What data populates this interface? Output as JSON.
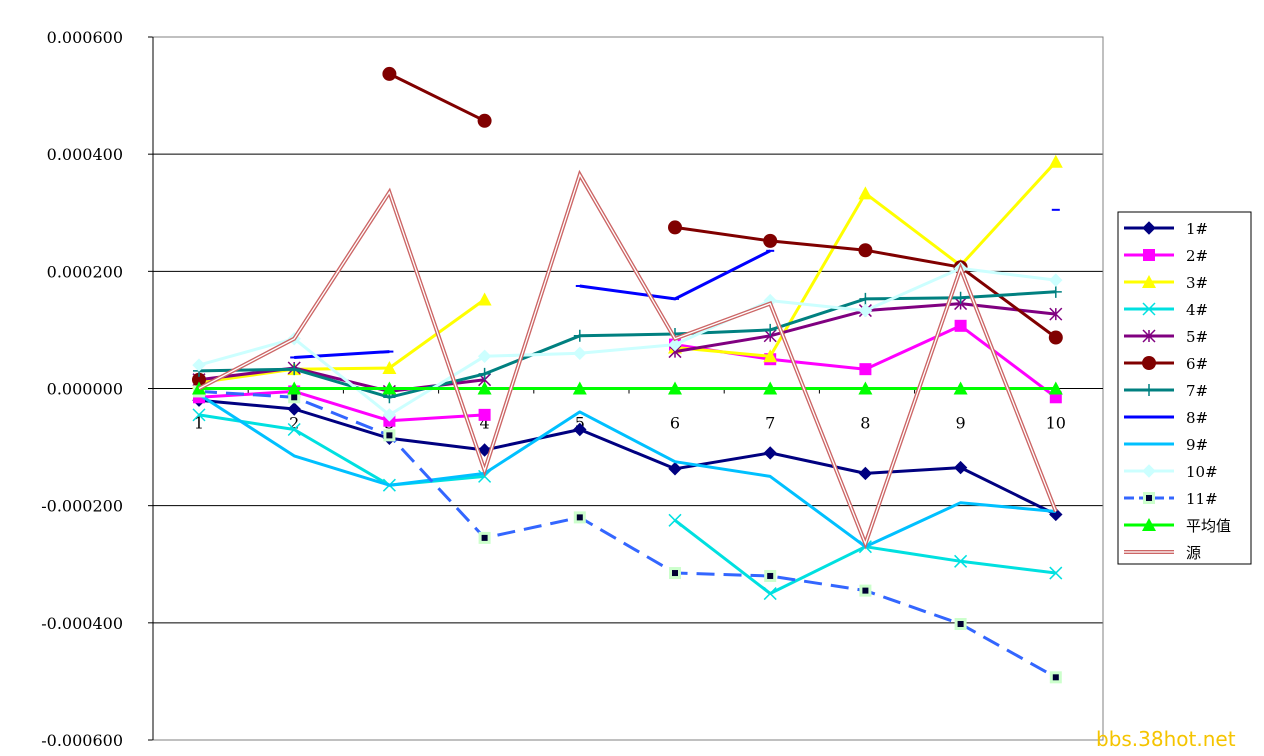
{
  "chart_data": {
    "type": "line",
    "title": "",
    "xlabel": "",
    "ylabel": "",
    "categories": [
      "1",
      "2",
      "3",
      "4",
      "5",
      "6",
      "7",
      "8",
      "9",
      "10"
    ],
    "ylim": [
      -0.0006,
      0.0006
    ],
    "yticks": [
      0.0006,
      0.0004,
      0.0002,
      0.0,
      -0.0002,
      -0.0004,
      -0.0006
    ],
    "ytick_labels": [
      "0.000600",
      "0.000400",
      "0.000200",
      "0.000000",
      "-0.000200",
      "-0.000400",
      "-0.000600"
    ],
    "grid": true,
    "legend_position": "right",
    "series": [
      {
        "name": "1#",
        "color": "#000080",
        "marker": "diamond",
        "dashed": false,
        "values": [
          -2e-05,
          -3.5e-05,
          -8.5e-05,
          -0.000105,
          -7e-05,
          -0.000137,
          -0.00011,
          -0.000145,
          -0.000135,
          -0.000215
        ]
      },
      {
        "name": "2#",
        "color": "#ff00ff",
        "marker": "square",
        "dashed": false,
        "values": [
          -1.5e-05,
          -5e-06,
          -5.5e-05,
          -4.5e-05,
          null,
          7.5e-05,
          5e-05,
          3.3e-05,
          0.000107,
          -1.5e-05
        ]
      },
      {
        "name": "3#",
        "color": "#ffff00",
        "marker": "triangle",
        "dashed": false,
        "values": [
          1e-05,
          3.3e-05,
          3.5e-05,
          0.000152,
          null,
          7e-05,
          5.5e-05,
          0.000333,
          0.00021,
          0.000387
        ]
      },
      {
        "name": "4#",
        "color": "#00e0e0",
        "marker": "x",
        "dashed": false,
        "values": [
          -4.5e-05,
          -7e-05,
          -0.000165,
          -0.00015,
          null,
          -0.000225,
          -0.00035,
          -0.00027,
          -0.000295,
          -0.000315
        ]
      },
      {
        "name": "5#",
        "color": "#800080",
        "marker": "star",
        "dashed": false,
        "values": [
          1.5e-05,
          3.5e-05,
          -5e-06,
          1.5e-05,
          null,
          6.3e-05,
          9e-05,
          0.000133,
          0.000145,
          0.000127
        ]
      },
      {
        "name": "6#",
        "color": "#800000",
        "marker": "circle",
        "dashed": false,
        "values": [
          1.5e-05,
          null,
          0.000537,
          0.000457,
          null,
          0.000275,
          0.000252,
          0.000236,
          0.000207,
          8.7e-05
        ]
      },
      {
        "name": "7#",
        "color": "#008080",
        "marker": "plus",
        "dashed": false,
        "values": [
          3e-05,
          3.3e-05,
          -1.5e-05,
          2.5e-05,
          9e-05,
          9.3e-05,
          0.0001,
          0.000153,
          0.000155,
          0.000165
        ]
      },
      {
        "name": "8#",
        "color": "#0000ff",
        "marker": "dash",
        "dashed": false,
        "values": [
          null,
          5.3e-05,
          6.3e-05,
          null,
          0.000175,
          0.000153,
          0.000235,
          null,
          null,
          0.000305
        ]
      },
      {
        "name": "9#",
        "color": "#00c0ff",
        "marker": "none",
        "dashed": false,
        "values": [
          -1e-05,
          -0.000115,
          -0.000165,
          -0.000145,
          -4e-05,
          -0.000125,
          -0.00015,
          -0.00027,
          -0.000195,
          -0.00021
        ]
      },
      {
        "name": "10#",
        "color": "#ccffff",
        "marker": "diamond",
        "dashed": false,
        "values": [
          4e-05,
          8.5e-05,
          -4.5e-05,
          5.5e-05,
          6e-05,
          7.5e-05,
          0.00015,
          0.000133,
          0.000205,
          0.000185
        ]
      },
      {
        "name": "11#",
        "color": "#3366ff",
        "marker": "square-filled",
        "dashed": true,
        "values": [
          -5e-06,
          -1.5e-05,
          -8e-05,
          -0.000255,
          -0.00022,
          -0.000315,
          -0.00032,
          -0.000345,
          -0.000402,
          -0.000493
        ]
      },
      {
        "name": "平均值",
        "color": "#00ff00",
        "marker": "triangle",
        "dashed": false,
        "values": [
          0.0,
          0.0,
          0.0,
          0.0,
          0.0,
          0.0,
          0.0,
          0.0,
          0.0,
          0.0
        ]
      },
      {
        "name": "源",
        "color": "#cc6666",
        "marker": "none",
        "dashed": false,
        "double": true,
        "values": [
          0.0,
          8.5e-05,
          0.000335,
          -0.00014,
          0.000365,
          8.5e-05,
          0.000145,
          -0.000265,
          0.000205,
          -0.00021
        ]
      }
    ]
  },
  "watermark": "bbs.38hot.net"
}
